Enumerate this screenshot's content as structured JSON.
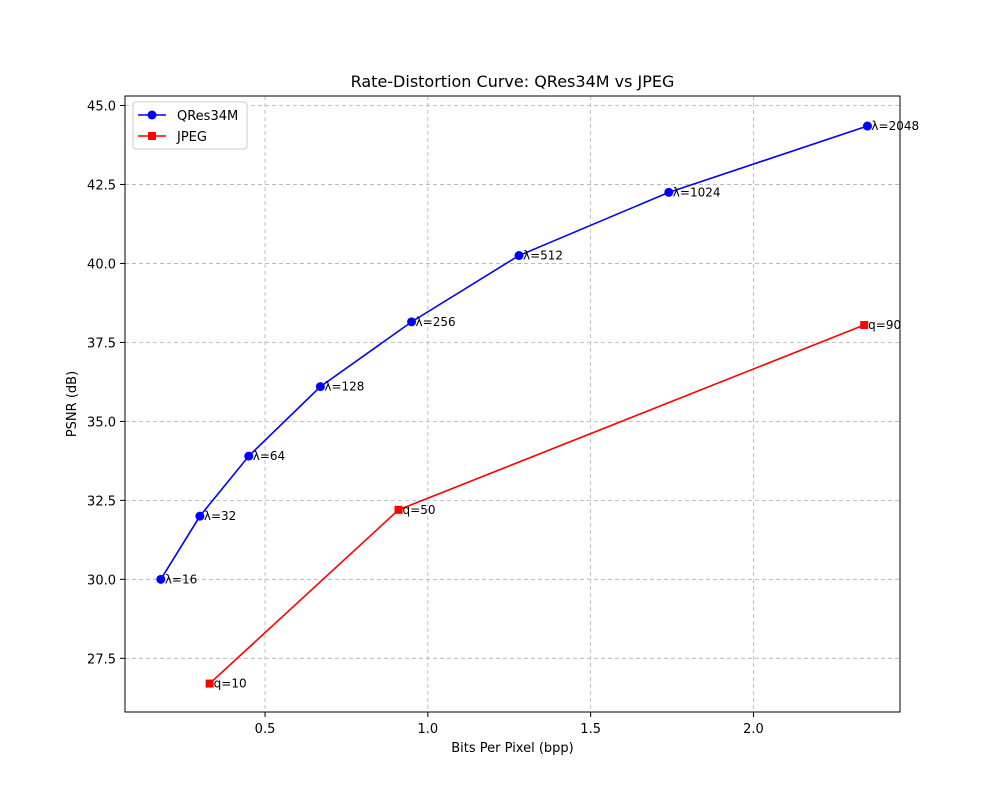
{
  "chart_data": {
    "type": "line",
    "title": "Rate-Distortion Curve: QRes34M vs JPEG",
    "xlabel": "Bits Per Pixel (bpp)",
    "ylabel": "PSNR (dB)",
    "xlim": [
      0.07,
      2.45
    ],
    "ylim": [
      25.8,
      45.3
    ],
    "xticks": [
      0.5,
      1.0,
      1.5,
      2.0
    ],
    "xtick_labels": [
      "0.5",
      "1.0",
      "1.5",
      "2.0"
    ],
    "yticks": [
      27.5,
      30.0,
      32.5,
      35.0,
      37.5,
      40.0,
      42.5,
      45.0
    ],
    "ytick_labels": [
      "27.5",
      "30.0",
      "32.5",
      "35.0",
      "37.5",
      "40.0",
      "42.5",
      "45.0"
    ],
    "grid": true,
    "legend_position": "top-left",
    "series": [
      {
        "name": "QRes34M",
        "color": "#0000ff",
        "marker": "circle",
        "x": [
          0.18,
          0.3,
          0.45,
          0.67,
          0.95,
          1.28,
          1.74,
          2.35
        ],
        "y": [
          30.0,
          32.0,
          33.9,
          36.1,
          38.15,
          40.25,
          42.25,
          44.35
        ],
        "point_labels": [
          "λ=16",
          "λ=32",
          "λ=64",
          "λ=128",
          "λ=256",
          "λ=512",
          "λ=1024",
          "λ=2048"
        ]
      },
      {
        "name": "JPEG",
        "color": "#ff0000",
        "marker": "square",
        "x": [
          0.33,
          0.91,
          2.34
        ],
        "y": [
          26.7,
          32.2,
          38.05
        ],
        "point_labels": [
          "q=10",
          "q=50",
          "q=90"
        ]
      }
    ]
  }
}
